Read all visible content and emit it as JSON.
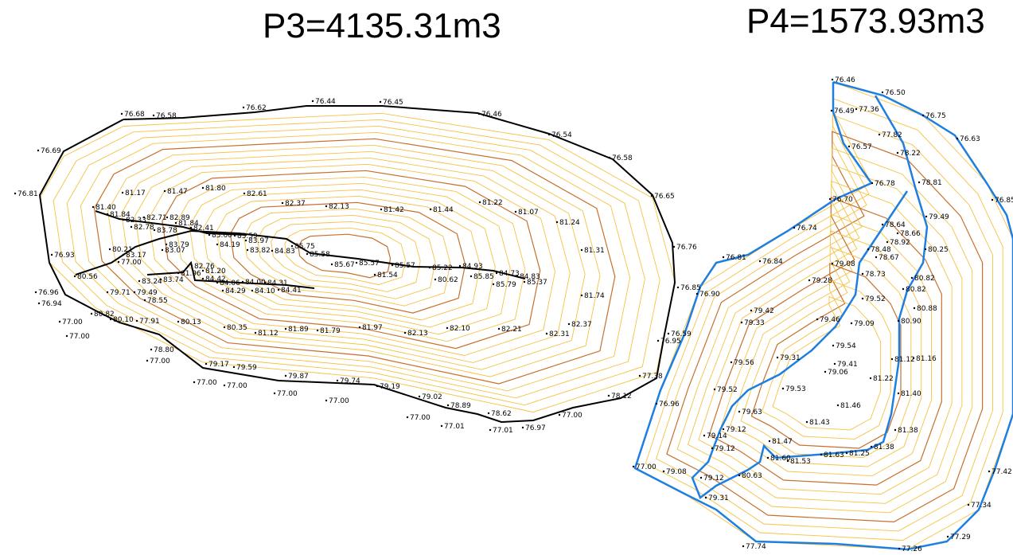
{
  "titles": {
    "p3": "P3=4135.31m3",
    "p4": "P4=1573.93m3"
  },
  "colors": {
    "contour_light": "#f5c242",
    "contour_dark": "#c8702a",
    "boundary_p3": "#000000",
    "boundary_p4": "#1e7fe0",
    "point": "#000000"
  },
  "p3_labels": [
    "76.44",
    "76.45",
    "76.62",
    "76.68",
    "76.58",
    "76.46",
    "76.54",
    "76.58",
    "76.69",
    "76.81",
    "76.65",
    "76.76",
    "76.93",
    "76.96",
    "76.94",
    "77.00",
    "77.00",
    "77.00",
    "77.00",
    "77.00",
    "77.00",
    "77.00",
    "77.00",
    "77.01",
    "77.01",
    "76.97",
    "77.00",
    "77.38",
    "78.12",
    "78.62",
    "78.89",
    "79.02",
    "79.19",
    "79.74",
    "79.87",
    "79.59",
    "79.17",
    "78.80",
    "77.91",
    "80.10",
    "80.82",
    "81.17",
    "81.47",
    "81.80",
    "82.61",
    "82.37",
    "82.13",
    "81.42",
    "81.44",
    "81.22",
    "81.07",
    "81.24",
    "81.31",
    "81.74",
    "82.37",
    "82.31",
    "82.21",
    "82.10",
    "82.13",
    "81.97",
    "81.79",
    "81.89",
    "81.12",
    "80.35",
    "80.13",
    "78.55",
    "79.49",
    "79.71",
    "77.00",
    "80.21",
    "80.56",
    "81.40",
    "81.84",
    "82.33",
    "82.71",
    "82.89",
    "81.84",
    "82.41",
    "82.78",
    "83.78",
    "83.79",
    "83.60",
    "83.59",
    "83.97",
    "84.19",
    "83.82",
    "84.83",
    "85.75",
    "85.58",
    "85.67",
    "85.57",
    "85.57",
    "85.22",
    "84.93",
    "84.73",
    "84.83",
    "85.37",
    "85.79",
    "85.85",
    "80.62",
    "81.54",
    "83.17",
    "83.07",
    "82.76",
    "81.20",
    "81.96",
    "83.24",
    "83.74",
    "84.42",
    "84.06",
    "84.00",
    "84.31",
    "84.29",
    "84.10",
    "84.41"
  ],
  "p4_labels": [
    "76.46",
    "76.50",
    "76.49",
    "77.36",
    "76.75",
    "77.82",
    "76.63",
    "76.57",
    "78.22",
    "76.78",
    "78.81",
    "76.85",
    "76.70",
    "79.49",
    "76.74",
    "78.64",
    "78.66",
    "78.48",
    "78.92",
    "80.25",
    "76.81",
    "76.84",
    "79.08",
    "78.67",
    "78.73",
    "80.82",
    "76.85",
    "76.90",
    "79.28",
    "80.82",
    "79.52",
    "80.88",
    "79.42",
    "79.46",
    "80.90",
    "79.33",
    "79.09",
    "76.59",
    "76.95",
    "79.54",
    "81.12",
    "81.16",
    "79.31",
    "79.56",
    "79.41",
    "79.06",
    "81.22",
    "79.53",
    "79.52",
    "81.40",
    "76.96",
    "81.46",
    "79.63",
    "81.43",
    "79.12",
    "79.14",
    "81.38",
    "81.47",
    "79.12",
    "81.38",
    "81.60",
    "81.63",
    "81.25",
    "81.53",
    "77.00",
    "79.08",
    "80.63",
    "79.12",
    "77.42",
    "79.31",
    "77.34",
    "77.29",
    "77.74",
    "77.26"
  ]
}
